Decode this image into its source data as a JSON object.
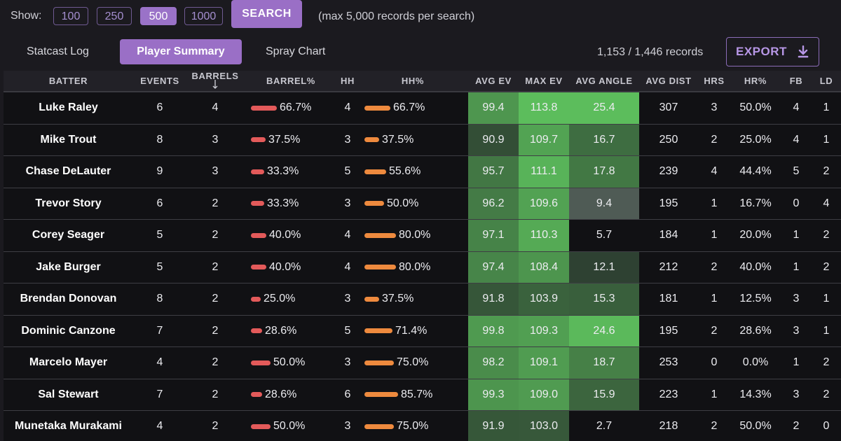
{
  "controls": {
    "show_label": "Show:",
    "sizes": [
      "100",
      "250",
      "500",
      "1000"
    ],
    "active_size": "500",
    "search_label": "SEARCH",
    "max_note": "(max 5,000 records per search)"
  },
  "tabs": [
    {
      "label": "Statcast Log",
      "active": false
    },
    {
      "label": "Player Summary",
      "active": true
    },
    {
      "label": "Spray Chart",
      "active": false
    }
  ],
  "records_text": "1,153 / 1,446 records",
  "export_label": "EXPORT",
  "colors": {
    "accent": "#9a6fc6",
    "barrel_bar": "#e35a5a",
    "hh_bar": "#ee8a3e",
    "green_strong": "#5cbd5c",
    "green_mid": "#3f8f45",
    "green_dim": "#2c4a32",
    "gray_cell": "#4f5b55"
  },
  "table": {
    "columns": [
      "BATTER",
      "EVENTS",
      "BARRELS",
      "BARREL%",
      "HH",
      "HH%",
      "AVG EV",
      "MAX EV",
      "AVG ANGLE",
      "AVG DIST",
      "HRS",
      "HR%",
      "FB",
      "LD"
    ],
    "sorted_column": "BARRELS",
    "rows": [
      {
        "batter": "Luke Raley",
        "events": "6",
        "barrels": "4",
        "barrel_pct": "66.7%",
        "barrel_frac": 0.667,
        "hh": "4",
        "hh_pct": "66.7%",
        "hh_frac": 0.667,
        "avg_ev": "99.4",
        "max_ev": "113.8",
        "avg_angle": "25.4",
        "avg_dist": "307",
        "hrs": "3",
        "hr_pct": "50.0%",
        "fb": "4",
        "ld": "1"
      },
      {
        "batter": "Mike Trout",
        "events": "8",
        "barrels": "3",
        "barrel_pct": "37.5%",
        "barrel_frac": 0.375,
        "hh": "3",
        "hh_pct": "37.5%",
        "hh_frac": 0.375,
        "avg_ev": "90.9",
        "max_ev": "109.7",
        "avg_angle": "16.7",
        "avg_dist": "250",
        "hrs": "2",
        "hr_pct": "25.0%",
        "fb": "4",
        "ld": "1"
      },
      {
        "batter": "Chase DeLauter",
        "events": "9",
        "barrels": "3",
        "barrel_pct": "33.3%",
        "barrel_frac": 0.333,
        "hh": "5",
        "hh_pct": "55.6%",
        "hh_frac": 0.556,
        "avg_ev": "95.7",
        "max_ev": "111.1",
        "avg_angle": "17.8",
        "avg_dist": "239",
        "hrs": "4",
        "hr_pct": "44.4%",
        "fb": "5",
        "ld": "2"
      },
      {
        "batter": "Trevor Story",
        "events": "6",
        "barrels": "2",
        "barrel_pct": "33.3%",
        "barrel_frac": 0.333,
        "hh": "3",
        "hh_pct": "50.0%",
        "hh_frac": 0.5,
        "avg_ev": "96.2",
        "max_ev": "109.6",
        "avg_angle": "9.4",
        "avg_dist": "195",
        "hrs": "1",
        "hr_pct": "16.7%",
        "fb": "0",
        "ld": "4"
      },
      {
        "batter": "Corey Seager",
        "events": "5",
        "barrels": "2",
        "barrel_pct": "40.0%",
        "barrel_frac": 0.4,
        "hh": "4",
        "hh_pct": "80.0%",
        "hh_frac": 0.8,
        "avg_ev": "97.1",
        "max_ev": "110.3",
        "avg_angle": "5.7",
        "avg_dist": "184",
        "hrs": "1",
        "hr_pct": "20.0%",
        "fb": "1",
        "ld": "2"
      },
      {
        "batter": "Jake Burger",
        "events": "5",
        "barrels": "2",
        "barrel_pct": "40.0%",
        "barrel_frac": 0.4,
        "hh": "4",
        "hh_pct": "80.0%",
        "hh_frac": 0.8,
        "avg_ev": "97.4",
        "max_ev": "108.4",
        "avg_angle": "12.1",
        "avg_dist": "212",
        "hrs": "2",
        "hr_pct": "40.0%",
        "fb": "1",
        "ld": "2"
      },
      {
        "batter": "Brendan Donovan",
        "events": "8",
        "barrels": "2",
        "barrel_pct": "25.0%",
        "barrel_frac": 0.25,
        "hh": "3",
        "hh_pct": "37.5%",
        "hh_frac": 0.375,
        "avg_ev": "91.8",
        "max_ev": "103.9",
        "avg_angle": "15.3",
        "avg_dist": "181",
        "hrs": "1",
        "hr_pct": "12.5%",
        "fb": "3",
        "ld": "1"
      },
      {
        "batter": "Dominic Canzone",
        "events": "7",
        "barrels": "2",
        "barrel_pct": "28.6%",
        "barrel_frac": 0.286,
        "hh": "5",
        "hh_pct": "71.4%",
        "hh_frac": 0.714,
        "avg_ev": "99.8",
        "max_ev": "109.3",
        "avg_angle": "24.6",
        "avg_dist": "195",
        "hrs": "2",
        "hr_pct": "28.6%",
        "fb": "3",
        "ld": "1"
      },
      {
        "batter": "Marcelo Mayer",
        "events": "4",
        "barrels": "2",
        "barrel_pct": "50.0%",
        "barrel_frac": 0.5,
        "hh": "3",
        "hh_pct": "75.0%",
        "hh_frac": 0.75,
        "avg_ev": "98.2",
        "max_ev": "109.1",
        "avg_angle": "18.7",
        "avg_dist": "253",
        "hrs": "0",
        "hr_pct": "0.0%",
        "fb": "1",
        "ld": "2"
      },
      {
        "batter": "Sal Stewart",
        "events": "7",
        "barrels": "2",
        "barrel_pct": "28.6%",
        "barrel_frac": 0.286,
        "hh": "6",
        "hh_pct": "85.7%",
        "hh_frac": 0.857,
        "avg_ev": "99.3",
        "max_ev": "109.0",
        "avg_angle": "15.9",
        "avg_dist": "223",
        "hrs": "1",
        "hr_pct": "14.3%",
        "fb": "3",
        "ld": "2"
      },
      {
        "batter": "Munetaka Murakami",
        "events": "4",
        "barrels": "2",
        "barrel_pct": "50.0%",
        "barrel_frac": 0.5,
        "hh": "3",
        "hh_pct": "75.0%",
        "hh_frac": 0.75,
        "avg_ev": "91.9",
        "max_ev": "103.0",
        "avg_angle": "2.7",
        "avg_dist": "218",
        "hrs": "2",
        "hr_pct": "50.0%",
        "fb": "2",
        "ld": "0"
      }
    ]
  }
}
